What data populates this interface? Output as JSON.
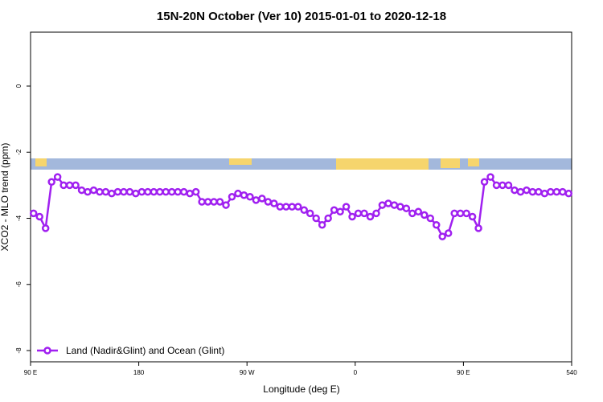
{
  "chart_data": {
    "type": "line",
    "title": "15N-20N October (Ver 10)   2015-01-01 to 2020-12-18",
    "xlabel": "Longitude (deg E)",
    "ylabel": "XCO2 - MLO trend (ppm)",
    "x": [
      92.5,
      97.5,
      102.5,
      107.5,
      112.5,
      117.5,
      122.5,
      127.5,
      132.5,
      137.5,
      142.5,
      147.5,
      152.5,
      157.5,
      162.5,
      167.5,
      172.5,
      177.5,
      182.5,
      187.5,
      192.5,
      197.5,
      202.5,
      207.5,
      212.5,
      217.5,
      222.5,
      227.5,
      232.5,
      237.5,
      242.5,
      247.5,
      252.5,
      257.5,
      262.5,
      267.5,
      272.5,
      277.5,
      282.5,
      287.5,
      292.5,
      297.5,
      302.5,
      307.5,
      312.5,
      317.5,
      322.5,
      327.5,
      332.5,
      337.5,
      342.5,
      347.5,
      352.5,
      357.5,
      362.5,
      367.5,
      372.5,
      377.5,
      382.5,
      387.5,
      392.5,
      397.5,
      402.5,
      407.5,
      412.5,
      417.5,
      422.5,
      427.5,
      432.5,
      437.5,
      442.5,
      447.5,
      452.5,
      457.5,
      462.5,
      467.5,
      472.5,
      477.5,
      482.5,
      487.5,
      492.5,
      497.5,
      502.5,
      507.5,
      512.5,
      517.5,
      522.5,
      527.5,
      532.5,
      537.5
    ],
    "series": [
      {
        "name": "Land (Nadir&Glint) and Ocean (Glint)",
        "color": "#a020f0",
        "values": [
          -3.85,
          -3.95,
          -4.3,
          -2.9,
          -2.75,
          -3.0,
          -3.0,
          -3.0,
          -3.15,
          -3.2,
          -3.15,
          -3.2,
          -3.2,
          -3.25,
          -3.2,
          -3.2,
          -3.2,
          -3.25,
          -3.2,
          -3.2,
          -3.2,
          -3.2,
          -3.2,
          -3.2,
          -3.2,
          -3.2,
          -3.25,
          -3.2,
          -3.5,
          -3.5,
          -3.5,
          -3.5,
          -3.6,
          -3.35,
          -3.25,
          -3.3,
          -3.35,
          -3.45,
          -3.4,
          -3.5,
          -3.55,
          -3.65,
          -3.65,
          -3.65,
          -3.65,
          -3.75,
          -3.85,
          -4.0,
          -4.2,
          -4.0,
          -3.75,
          -3.8,
          -3.65,
          -3.95,
          -3.85,
          -3.85,
          -3.95,
          -3.85,
          -3.6,
          -3.55,
          -3.6,
          -3.65,
          -3.7,
          -3.85,
          -3.8,
          -3.9,
          -4.0,
          -4.2,
          -4.55,
          -4.45,
          -3.85,
          -3.85,
          -3.85,
          -3.95,
          -4.3,
          -2.9,
          -2.75,
          -3.0,
          -3.0,
          -3.0,
          -3.15,
          -3.2,
          -3.15,
          -3.2,
          -3.2,
          -3.25,
          -3.2,
          -3.2,
          -3.2,
          -3.25
        ]
      }
    ],
    "xlim": [
      90,
      540
    ],
    "xticks": [
      {
        "value": 90,
        "label": "90 E"
      },
      180,
      {
        "value": 270,
        "label": "90 W"
      },
      {
        "value": 360,
        "label": "0"
      },
      {
        "value": 450,
        "label": "90 E"
      },
      540
    ],
    "ylim": [
      -8.34,
      1.63
    ],
    "yticks": [
      0,
      -2,
      -4,
      -6,
      -8
    ],
    "legend": "bottom-left"
  }
}
